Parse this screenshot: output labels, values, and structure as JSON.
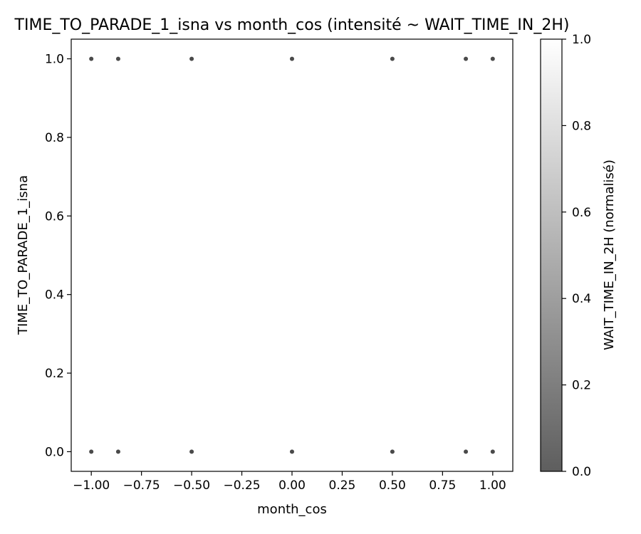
{
  "chart_data": {
    "type": "scatter",
    "title": "TIME_TO_PARADE_1_isna vs month_cos (intensité ~ WAIT_TIME_IN_2H)",
    "xlabel": "month_cos",
    "ylabel": "TIME_TO_PARADE_1_isna",
    "xlim": [
      -1.1,
      1.1
    ],
    "ylim": [
      -0.05,
      1.05
    ],
    "xticks": [
      -1.0,
      -0.75,
      -0.5,
      -0.25,
      0.0,
      0.25,
      0.5,
      0.75,
      1.0
    ],
    "xtick_labels": [
      "−1.00",
      "−0.75",
      "−0.50",
      "−0.25",
      "0.00",
      "0.25",
      "0.50",
      "0.75",
      "1.00"
    ],
    "yticks": [
      0.0,
      0.2,
      0.4,
      0.6,
      0.8,
      1.0
    ],
    "ytick_labels": [
      "0.0",
      "0.2",
      "0.4",
      "0.6",
      "0.8",
      "1.0"
    ],
    "grid": false,
    "marker_color": "#4a4a4a",
    "points": [
      {
        "x": -1.0,
        "y": 1.0
      },
      {
        "x": -0.866,
        "y": 1.0
      },
      {
        "x": -0.5,
        "y": 1.0
      },
      {
        "x": 0.0,
        "y": 1.0
      },
      {
        "x": 0.5,
        "y": 1.0
      },
      {
        "x": 0.866,
        "y": 1.0
      },
      {
        "x": 1.0,
        "y": 1.0
      },
      {
        "x": -1.0,
        "y": 0.0
      },
      {
        "x": -0.866,
        "y": 0.0
      },
      {
        "x": -0.5,
        "y": 0.0
      },
      {
        "x": 0.0,
        "y": 0.0
      },
      {
        "x": 0.5,
        "y": 0.0
      },
      {
        "x": 0.866,
        "y": 0.0
      },
      {
        "x": 1.0,
        "y": 0.0
      }
    ],
    "colorbar": {
      "label": "WAIT_TIME_IN_2H (normalisé)",
      "range": [
        0.0,
        1.0
      ],
      "ticks": [
        0.0,
        0.2,
        0.4,
        0.6,
        0.8,
        1.0
      ],
      "tick_labels": [
        "0.0",
        "0.2",
        "0.4",
        "0.6",
        "0.8",
        "1.0"
      ],
      "color_low": "#5e5e5e",
      "color_high": "#ffffff"
    }
  }
}
